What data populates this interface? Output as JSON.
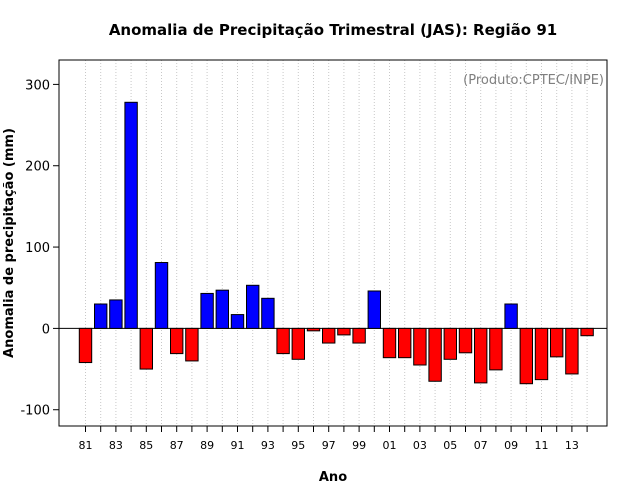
{
  "chart_data": {
    "type": "bar",
    "title": "Anomalia de Precipitação Trimestral (JAS): Região 91",
    "xlabel": "Ano",
    "ylabel": "Anomalia de precipitação (mm)",
    "credit": "(Produto:CPTEC/INPE)",
    "ylim": [
      -120,
      330
    ],
    "yticks": [
      -100,
      0,
      100,
      200,
      300
    ],
    "ytick_labels": [
      "-100",
      "0",
      "100",
      "200",
      "300"
    ],
    "grid": "vertical dotted",
    "colors": {
      "positive": "#0000ff",
      "negative": "#ff0000",
      "grid": "#c8c8c8"
    },
    "categories": [
      "1981",
      "1982",
      "1983",
      "1984",
      "1985",
      "1986",
      "1987",
      "1988",
      "1989",
      "1990",
      "1991",
      "1992",
      "1993",
      "1994",
      "1995",
      "1996",
      "1997",
      "1998",
      "1999",
      "2000",
      "2001",
      "2002",
      "2003",
      "2004",
      "2005",
      "2006",
      "2007",
      "2008",
      "2009",
      "2010",
      "2011",
      "2012",
      "2013",
      "2014"
    ],
    "values": [
      -42,
      30,
      35,
      278,
      -50,
      81,
      -31,
      -40,
      43,
      47,
      17,
      53,
      37,
      -31,
      -38,
      -3,
      -18,
      -8,
      -18,
      46,
      -36,
      -36,
      -45,
      -65,
      -38,
      -30,
      -67,
      -51,
      30,
      -68,
      -63,
      -35,
      -56,
      -9
    ],
    "xtick_labels": [
      "81",
      "83",
      "85",
      "87",
      "89",
      "91",
      "93",
      "95",
      "97",
      "99",
      "01",
      "03",
      "05",
      "07",
      "09",
      "11",
      "13"
    ]
  }
}
